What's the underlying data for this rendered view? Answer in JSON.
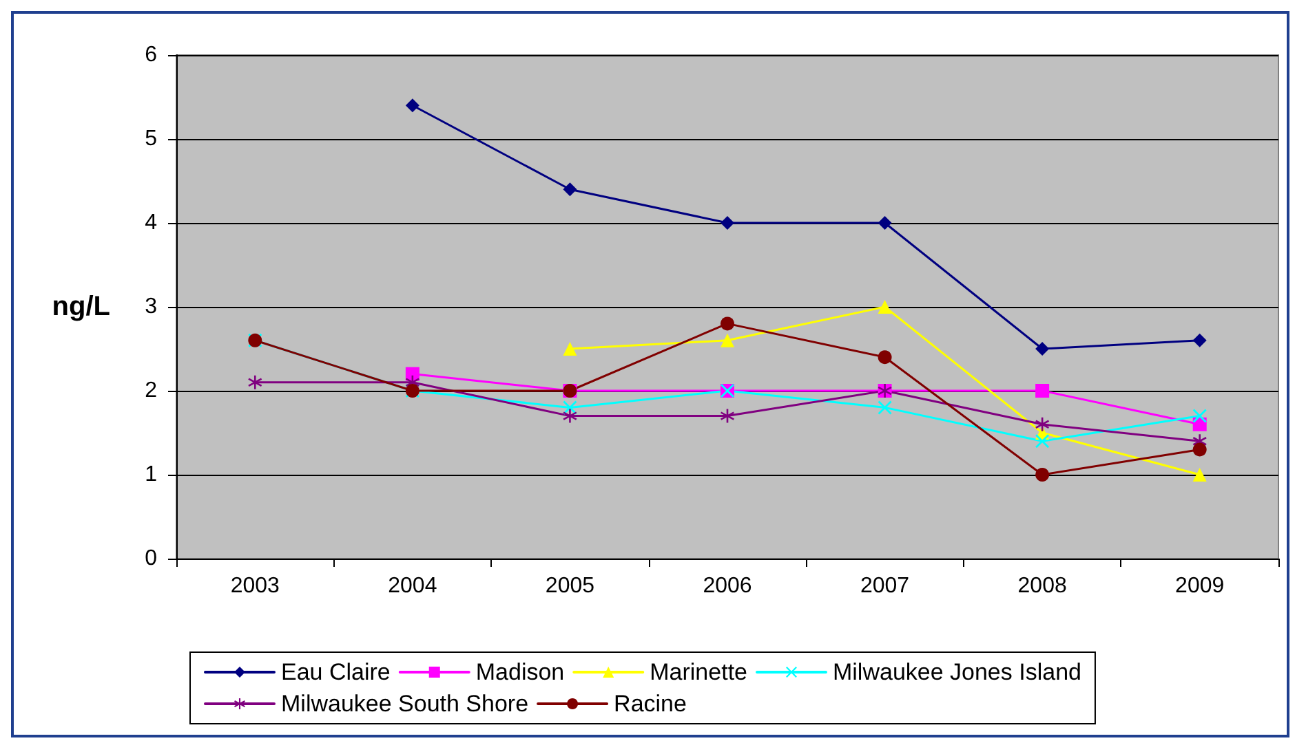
{
  "chart_data": {
    "type": "line",
    "ylabel": "ng/L",
    "categories": [
      "2003",
      "2004",
      "2005",
      "2006",
      "2007",
      "2008",
      "2009"
    ],
    "ylim": [
      0,
      6
    ],
    "yticks": [
      0,
      1,
      2,
      3,
      4,
      5,
      6
    ],
    "grid": "y",
    "legend": "bottom",
    "line_style": "solid",
    "series": [
      {
        "name": "Eau Claire",
        "color": "#000080",
        "marker": "diamond",
        "values": [
          null,
          5.4,
          4.4,
          4,
          4,
          2.5,
          2.6
        ]
      },
      {
        "name": "Madison",
        "color": "#ff00ff",
        "marker": "square",
        "values": [
          null,
          2.2,
          2,
          2,
          2,
          2,
          1.6
        ]
      },
      {
        "name": "Marinette",
        "color": "#ffff00",
        "marker": "triangle",
        "values": [
          null,
          null,
          2.5,
          2.6,
          3,
          1.5,
          1
        ]
      },
      {
        "name": "Milwaukee Jones Island",
        "color": "#00ffff",
        "marker": "cross",
        "values": [
          2.6,
          2,
          1.8,
          2,
          1.8,
          1.4,
          1.7
        ]
      },
      {
        "name": "Milwaukee South Shore",
        "color": "#800080",
        "marker": "star",
        "values": [
          2.1,
          2.1,
          1.7,
          1.7,
          2,
          1.6,
          1.4
        ]
      },
      {
        "name": "Racine",
        "color": "#800000",
        "marker": "circle",
        "values": [
          2.6,
          2,
          2,
          2.8,
          2.4,
          1,
          1.3
        ]
      }
    ]
  }
}
